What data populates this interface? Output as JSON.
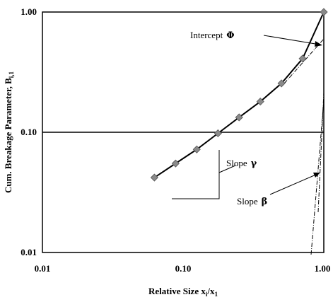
{
  "chart_data": {
    "type": "scatter",
    "x_scale": "log",
    "y_scale": "log",
    "xlim": [
      0.01,
      1.0
    ],
    "ylim": [
      0.01,
      1.0
    ],
    "xlabel": {
      "main": "Relative Size x",
      "sub1": "i",
      "mid": "/x",
      "sub2": "1"
    },
    "ylabel": {
      "main": "Cum. Breakage Parameter, B",
      "sub": "i,1"
    },
    "x_ticks": [
      "0.01",
      "0.10",
      "1.00"
    ],
    "y_ticks": [
      "0.01",
      "0.10",
      "1.00"
    ],
    "grid": false,
    "reference_line_y": 0.1,
    "series": [
      {
        "marker": "diamond",
        "marker_color": "#8a8a8a",
        "line_color": "#000000",
        "x": [
          0.0625,
          0.0884,
          0.125,
          0.177,
          0.25,
          0.354,
          0.5,
          0.707,
          1.0
        ],
        "y": [
          0.042,
          0.055,
          0.072,
          0.098,
          0.133,
          0.18,
          0.255,
          0.41,
          1.0
        ]
      }
    ],
    "annotations": {
      "intercept": {
        "text": "Intercept",
        "symbol": "Φ"
      },
      "slope_gamma": {
        "text": "Slope",
        "symbol": "γ"
      },
      "slope_beta": {
        "text": "Slope",
        "symbol": "β"
      }
    }
  }
}
